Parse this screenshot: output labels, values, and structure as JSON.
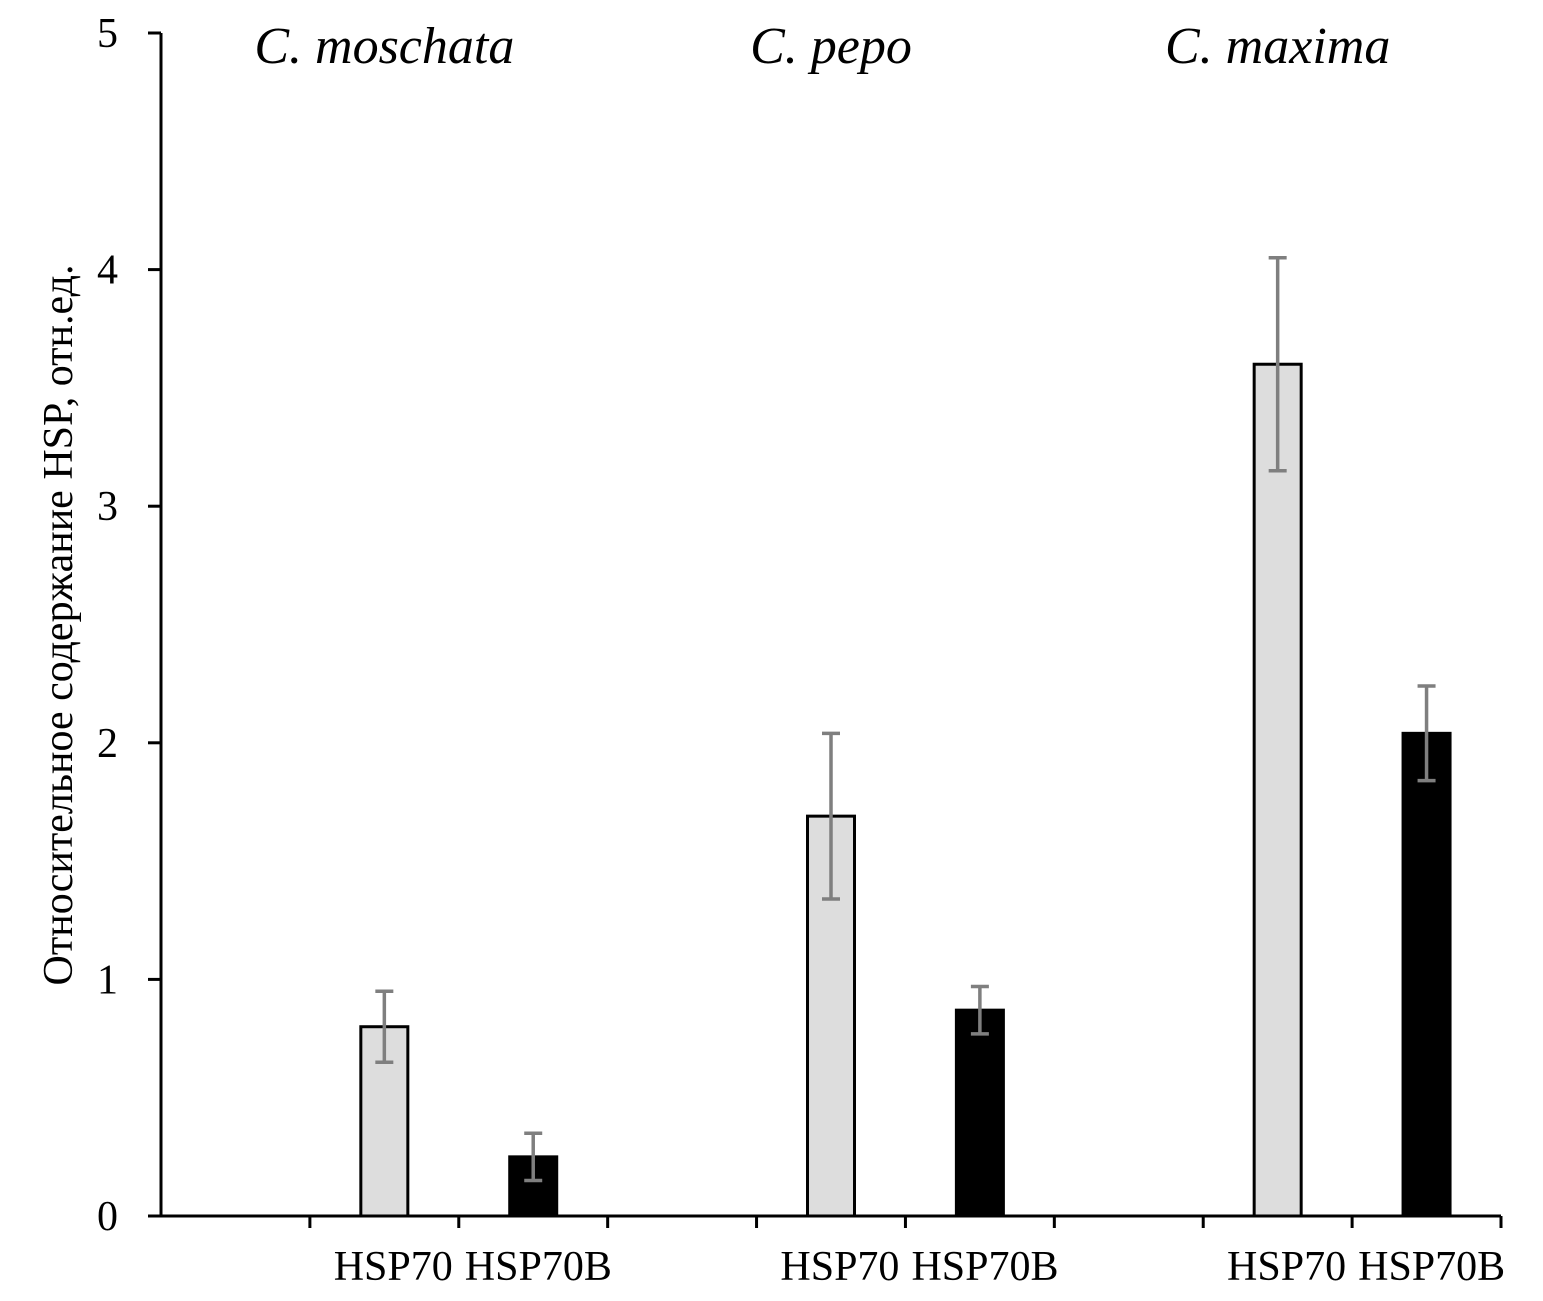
{
  "chart_data": {
    "type": "bar",
    "ylabel": "Относительное содержание HSP, отн.ед.",
    "xlabel": "",
    "ylim": [
      0,
      5
    ],
    "yticks": [
      "0",
      "1",
      "2",
      "3",
      "4",
      "5"
    ],
    "groups": [
      {
        "label": "C. moschata",
        "bars": [
          {
            "category": "HSP70",
            "value": 0.8,
            "error_low": 0.65,
            "error_high": 0.95,
            "color": "#dddddd"
          },
          {
            "category": "HSP70B",
            "value": 0.25,
            "error_low": 0.15,
            "error_high": 0.35,
            "color": "#000000"
          }
        ]
      },
      {
        "label": "C. pepo",
        "bars": [
          {
            "category": "HSP70",
            "value": 1.69,
            "error_low": 1.34,
            "error_high": 2.04,
            "color": "#dddddd"
          },
          {
            "category": "HSP70B",
            "value": 0.87,
            "error_low": 0.77,
            "error_high": 0.97,
            "color": "#000000"
          }
        ]
      },
      {
        "label": "C. maxima",
        "bars": [
          {
            "category": "HSP70",
            "value": 3.6,
            "error_low": 3.15,
            "error_high": 4.05,
            "color": "#dddddd"
          },
          {
            "category": "HSP70B",
            "value": 2.04,
            "error_low": 1.84,
            "error_high": 2.24,
            "color": "#000000"
          }
        ]
      }
    ],
    "error_bar_color": "#7f7f7f",
    "grid": false,
    "legend": "none"
  }
}
